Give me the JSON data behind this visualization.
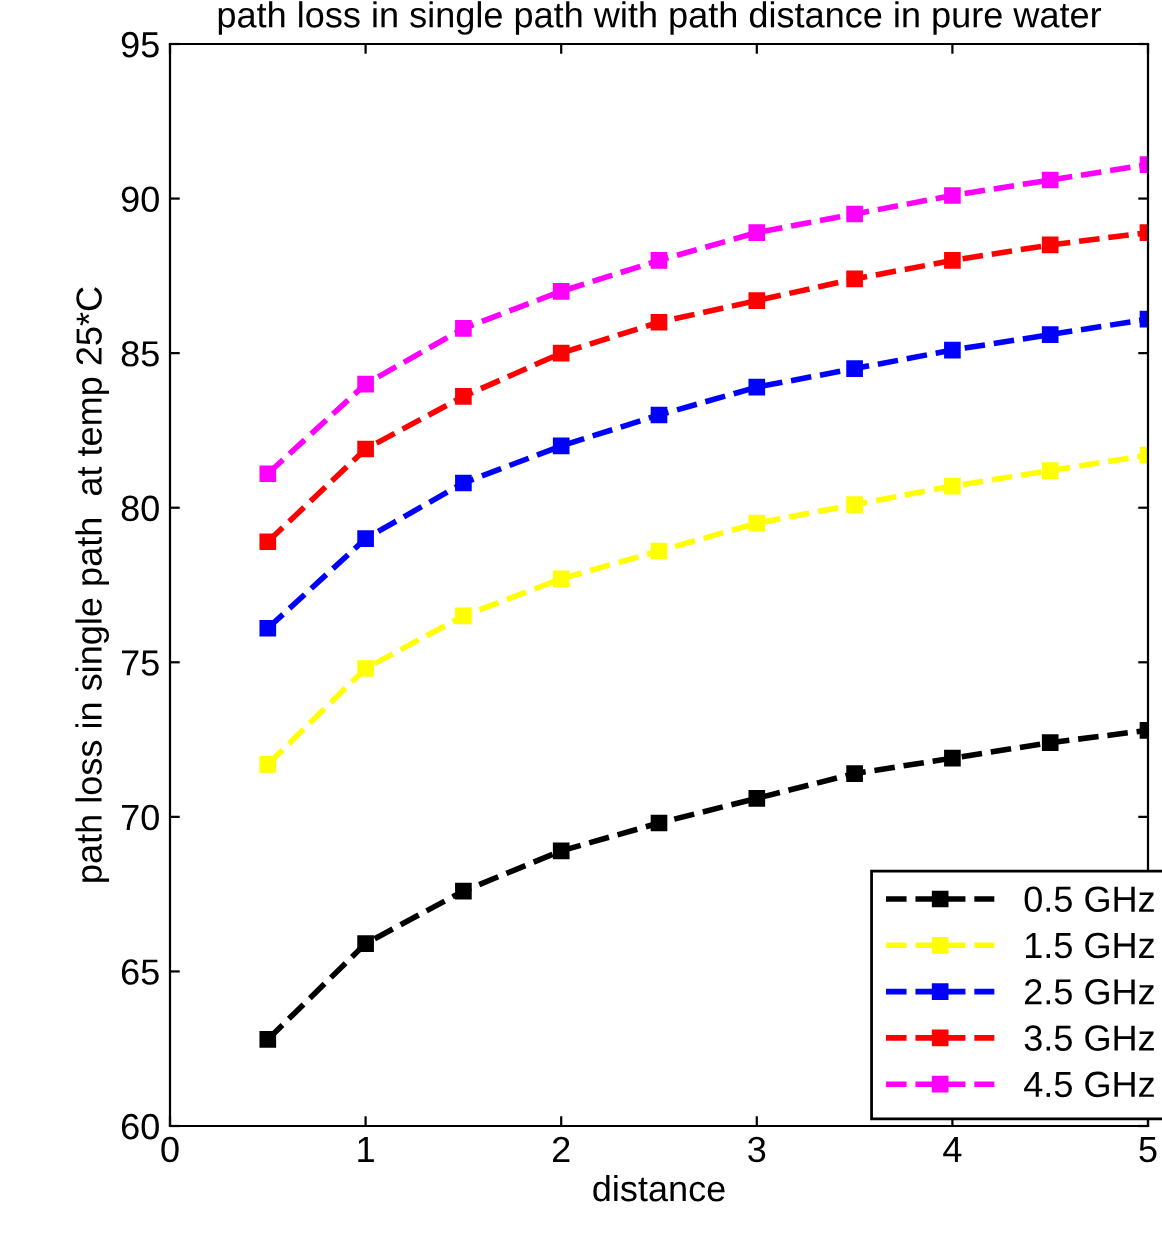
{
  "chart_data": {
    "type": "line",
    "title": "path loss in single path with path distance in pure water",
    "xlabel": "distance",
    "ylabel": "path loss in single path  at temp 25*C",
    "x": [
      0.5,
      1,
      1.5,
      2,
      2.5,
      3,
      3.5,
      4,
      4.5,
      5
    ],
    "series": [
      {
        "name": "0.5 GHz",
        "color": "#000000",
        "values": [
          62.8,
          65.9,
          67.6,
          68.9,
          69.8,
          70.6,
          71.4,
          71.9,
          72.4,
          72.8
        ]
      },
      {
        "name": "1.5 GHz",
        "color": "#ffff00",
        "values": [
          71.7,
          74.8,
          76.5,
          77.7,
          78.6,
          79.5,
          80.1,
          80.7,
          81.2,
          81.7
        ]
      },
      {
        "name": "2.5 GHz",
        "color": "#0000ff",
        "values": [
          76.1,
          79.0,
          80.8,
          82.0,
          83.0,
          83.9,
          84.5,
          85.1,
          85.6,
          86.1
        ]
      },
      {
        "name": "3.5 GHz",
        "color": "#ff0000",
        "values": [
          78.9,
          81.9,
          83.6,
          85.0,
          86.0,
          86.7,
          87.4,
          88.0,
          88.5,
          88.9
        ]
      },
      {
        "name": "4.5 GHz",
        "color": "#ff00ff",
        "values": [
          81.1,
          84.0,
          85.8,
          87.0,
          88.0,
          88.9,
          89.5,
          90.1,
          90.6,
          91.1
        ]
      }
    ],
    "xlim": [
      0,
      5
    ],
    "xticks": [
      0,
      1,
      2,
      3,
      4,
      5
    ],
    "ylim": [
      60,
      95
    ],
    "yticks": [
      60,
      65,
      70,
      75,
      80,
      85,
      90,
      95
    ],
    "grid": false,
    "legend": "bottom right",
    "marker": "square",
    "line_style": "dashed"
  }
}
